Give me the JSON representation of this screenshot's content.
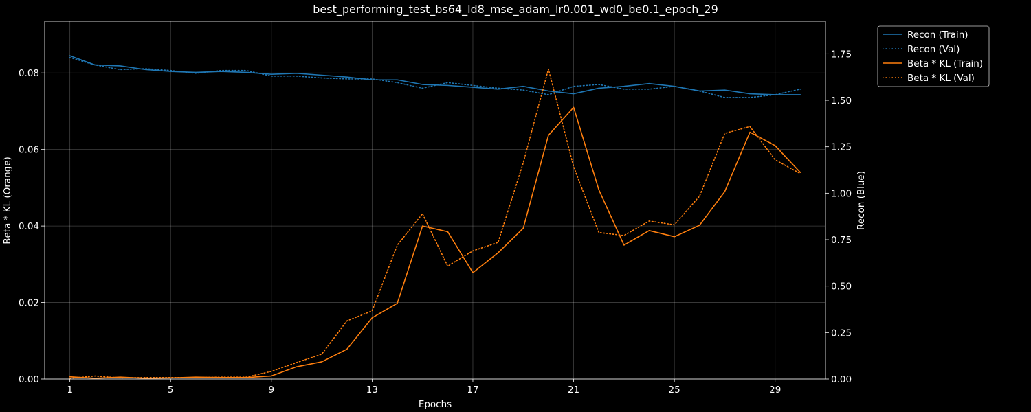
{
  "chart_data": {
    "type": "line",
    "title": "best_performing_test_bs64_ld8_mse_adam_lr0.001_wd0_be0.1_epoch_29",
    "xlabel": "Epochs",
    "ylabel_left": "Beta * KL (Orange)",
    "ylabel_right": "Recon (Blue)",
    "x": [
      1,
      2,
      3,
      4,
      5,
      6,
      7,
      8,
      9,
      10,
      11,
      12,
      13,
      14,
      15,
      16,
      17,
      18,
      19,
      20,
      21,
      22,
      23,
      24,
      25,
      26,
      27,
      28,
      29,
      30
    ],
    "xlim": [
      0,
      31
    ],
    "ylim_left": [
      0,
      0.0935
    ],
    "ylim_right": [
      0,
      1.925
    ],
    "xticks": [
      1,
      5,
      9,
      13,
      17,
      21,
      25,
      29
    ],
    "yticks_left": [
      "0.00",
      "0.02",
      "0.04",
      "0.06",
      "0.08"
    ],
    "yticks_right": [
      "0.00",
      "0.25",
      "0.50",
      "0.75",
      "1.00",
      "1.25",
      "1.50",
      "1.75"
    ],
    "grid": true,
    "legend_position": "outside-top-right",
    "series": [
      {
        "name": "Recon (Train)",
        "axis": "right",
        "color": "#1f77b4",
        "style": "solid",
        "values": [
          1.74,
          1.69,
          1.685,
          1.665,
          1.655,
          1.65,
          1.655,
          1.65,
          1.64,
          1.645,
          1.635,
          1.625,
          1.61,
          1.61,
          1.585,
          1.58,
          1.57,
          1.56,
          1.575,
          1.55,
          1.535,
          1.565,
          1.575,
          1.59,
          1.575,
          1.55,
          1.555,
          1.535,
          1.53,
          1.53
        ]
      },
      {
        "name": "Recon (Val)",
        "axis": "right",
        "color": "#1f77b4",
        "style": "dotted",
        "values": [
          1.73,
          1.69,
          1.665,
          1.67,
          1.66,
          1.645,
          1.66,
          1.66,
          1.63,
          1.63,
          1.62,
          1.615,
          1.615,
          1.595,
          1.565,
          1.595,
          1.58,
          1.565,
          1.555,
          1.53,
          1.575,
          1.585,
          1.56,
          1.56,
          1.575,
          1.55,
          1.515,
          1.515,
          1.53,
          1.56
        ]
      },
      {
        "name": "Beta * KL (Train)",
        "axis": "left",
        "color": "#ff7f0e",
        "style": "solid",
        "values": [
          0.0006,
          0.0002,
          0.0005,
          0.0002,
          0.0003,
          0.0005,
          0.0004,
          0.0004,
          0.0008,
          0.0032,
          0.0045,
          0.0078,
          0.016,
          0.0198,
          0.04,
          0.0385,
          0.0278,
          0.033,
          0.0394,
          0.0637,
          0.071,
          0.0495,
          0.035,
          0.0388,
          0.0372,
          0.0402,
          0.049,
          0.0645,
          0.061,
          0.054
        ]
      },
      {
        "name": "Beta * KL (Val)",
        "axis": "left",
        "color": "#ff7f0e",
        "style": "dotted",
        "values": [
          0.0002,
          0.0008,
          0.0003,
          0.0004,
          0.0004,
          0.0004,
          0.0005,
          0.0005,
          0.002,
          0.0043,
          0.0065,
          0.0152,
          0.0178,
          0.035,
          0.0432,
          0.0295,
          0.0335,
          0.0357,
          0.0565,
          0.081,
          0.0555,
          0.0383,
          0.0375,
          0.0413,
          0.0403,
          0.0478,
          0.0642,
          0.066,
          0.0573,
          0.0537
        ]
      }
    ]
  }
}
